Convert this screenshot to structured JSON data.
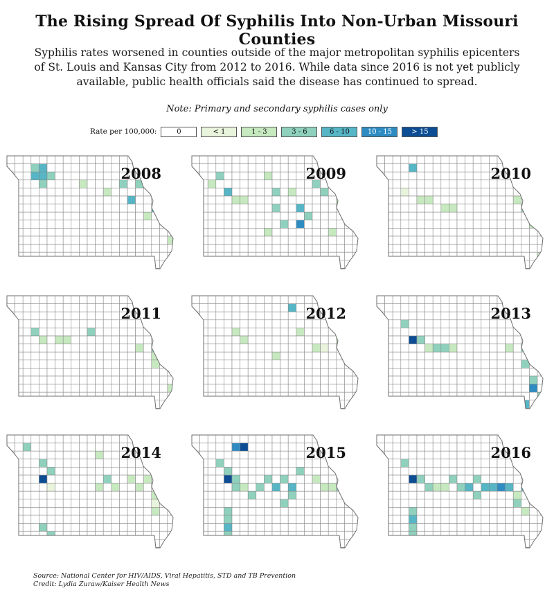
{
  "title": "The Rising Spread Of Syphilis Into Non-Urban Missouri Counties",
  "subtitle": "Syphilis rates worsened in counties outside of the major metropolitan syphilis epicenters of St. Louis and Kansas City from 2012 to 2016. While data since 2016 is not yet publicly available, public health officials said the disease has continued to spread.",
  "note": "Note: Primary and secondary syphilis cases only",
  "legend": {
    "label": "Rate per 100,000:",
    "items": [
      {
        "label": "0",
        "color": "#ffffff",
        "text_color": "#111111"
      },
      {
        "label": "< 1",
        "color": "#e9f4dc",
        "text_color": "#111111"
      },
      {
        "label": "1 - 3",
        "color": "#c7e9c0",
        "text_color": "#111111"
      },
      {
        "label": "3 - 6",
        "color": "#8fd1bd",
        "text_color": "#111111"
      },
      {
        "label": "6 - 10",
        "color": "#56b6c6",
        "text_color": "#111111"
      },
      {
        "label": "10 - 15",
        "color": "#2f8cc2",
        "text_color": "#ffffff"
      },
      {
        "label": "> 15",
        "color": "#0d4d94",
        "text_color": "#ffffff"
      }
    ]
  },
  "maps": [
    {
      "year": "2008",
      "counties": [
        [
          3,
          1,
          3
        ],
        [
          4,
          1,
          4
        ],
        [
          3,
          2,
          4
        ],
        [
          4,
          2,
          4
        ],
        [
          4,
          3,
          3
        ],
        [
          5,
          2,
          3
        ],
        [
          9,
          3,
          2
        ],
        [
          12,
          4,
          2
        ],
        [
          14,
          3,
          3
        ],
        [
          16,
          3,
          3
        ],
        [
          15,
          5,
          4
        ],
        [
          19,
          6,
          2
        ],
        [
          17,
          7,
          2
        ],
        [
          18,
          6,
          4
        ],
        [
          19,
          6,
          6
        ],
        [
          20,
          6,
          5
        ],
        [
          20,
          10,
          2
        ],
        [
          2,
          13,
          1
        ],
        [
          5,
          13,
          3
        ],
        [
          6,
          13,
          4
        ],
        [
          8,
          13,
          2
        ],
        [
          6,
          15,
          3
        ],
        [
          17,
          14,
          2
        ],
        [
          18,
          15,
          3
        ]
      ]
    },
    {
      "year": "2009",
      "counties": [
        [
          2,
          3,
          2
        ],
        [
          3,
          2,
          3
        ],
        [
          4,
          4,
          4
        ],
        [
          5,
          5,
          2
        ],
        [
          6,
          5,
          2
        ],
        [
          9,
          2,
          2
        ],
        [
          10,
          4,
          3
        ],
        [
          12,
          4,
          2
        ],
        [
          13,
          6,
          4
        ],
        [
          14,
          7,
          3
        ],
        [
          13,
          8,
          5
        ],
        [
          10,
          6,
          3
        ],
        [
          11,
          8,
          3
        ],
        [
          9,
          9,
          2
        ],
        [
          15,
          3,
          3
        ],
        [
          16,
          4,
          3
        ],
        [
          18,
          5,
          2
        ],
        [
          19,
          6,
          4
        ],
        [
          20,
          6,
          6
        ],
        [
          17,
          9,
          2
        ],
        [
          2,
          13,
          3
        ],
        [
          5,
          14,
          4
        ],
        [
          6,
          14,
          2
        ],
        [
          7,
          13,
          3
        ],
        [
          9,
          15,
          2
        ],
        [
          10,
          15,
          2
        ]
      ]
    },
    {
      "year": "2010",
      "counties": [
        [
          4,
          1,
          4
        ],
        [
          3,
          4,
          1
        ],
        [
          5,
          5,
          2
        ],
        [
          6,
          5,
          2
        ],
        [
          8,
          6,
          2
        ],
        [
          9,
          6,
          2
        ],
        [
          17,
          5,
          2
        ],
        [
          18,
          6,
          3
        ],
        [
          19,
          6,
          6
        ],
        [
          19,
          8,
          2
        ],
        [
          7,
          13,
          2
        ],
        [
          8,
          14,
          2
        ],
        [
          10,
          14,
          4
        ],
        [
          20,
          12,
          2
        ]
      ]
    },
    {
      "year": "2011",
      "counties": [
        [
          3,
          4,
          3
        ],
        [
          4,
          5,
          2
        ],
        [
          6,
          5,
          2
        ],
        [
          7,
          5,
          2
        ],
        [
          10,
          4,
          3
        ],
        [
          16,
          6,
          2
        ],
        [
          18,
          6,
          3
        ],
        [
          19,
          6,
          6
        ],
        [
          18,
          7,
          2
        ],
        [
          18,
          8,
          2
        ],
        [
          7,
          13,
          1
        ],
        [
          20,
          11,
          2
        ]
      ]
    },
    {
      "year": "2012",
      "counties": [
        [
          5,
          4,
          2
        ],
        [
          6,
          5,
          2
        ],
        [
          12,
          1,
          4
        ],
        [
          13,
          4,
          2
        ],
        [
          10,
          7,
          2
        ],
        [
          15,
          6,
          2
        ],
        [
          16,
          6,
          1
        ],
        [
          18,
          5,
          2
        ],
        [
          19,
          6,
          5
        ],
        [
          2,
          13,
          2
        ],
        [
          4,
          13,
          2
        ],
        [
          9,
          15,
          5
        ],
        [
          10,
          15,
          2
        ],
        [
          17,
          14,
          3
        ],
        [
          18,
          15,
          4
        ]
      ]
    },
    {
      "year": "2013",
      "counties": [
        [
          3,
          3,
          3
        ],
        [
          4,
          5,
          6
        ],
        [
          5,
          5,
          3
        ],
        [
          6,
          6,
          2
        ],
        [
          7,
          6,
          3
        ],
        [
          8,
          6,
          3
        ],
        [
          9,
          6,
          2
        ],
        [
          16,
          6,
          2
        ],
        [
          18,
          6,
          3
        ],
        [
          19,
          6,
          6
        ],
        [
          18,
          8,
          3
        ],
        [
          19,
          10,
          3
        ],
        [
          19,
          11,
          5
        ],
        [
          20,
          12,
          3
        ],
        [
          18,
          13,
          4
        ],
        [
          19,
          14,
          5
        ],
        [
          17,
          15,
          3
        ],
        [
          2,
          13,
          2
        ],
        [
          6,
          13,
          1
        ]
      ]
    },
    {
      "year": "2014",
      "counties": [
        [
          2,
          1,
          3
        ],
        [
          4,
          3,
          3
        ],
        [
          5,
          4,
          3
        ],
        [
          4,
          5,
          6
        ],
        [
          5,
          6,
          1
        ],
        [
          11,
          2,
          2
        ],
        [
          11,
          6,
          2
        ],
        [
          12,
          5,
          3
        ],
        [
          13,
          6,
          2
        ],
        [
          15,
          5,
          2
        ],
        [
          16,
          6,
          2
        ],
        [
          17,
          5,
          2
        ],
        [
          19,
          6,
          6
        ],
        [
          18,
          7,
          2
        ],
        [
          18,
          8,
          1
        ],
        [
          18,
          9,
          2
        ],
        [
          4,
          11,
          3
        ],
        [
          5,
          12,
          3
        ],
        [
          3,
          14,
          2
        ],
        [
          10,
          15,
          5
        ],
        [
          12,
          15,
          2
        ]
      ]
    },
    {
      "year": "2015",
      "counties": [
        [
          5,
          1,
          5
        ],
        [
          6,
          1,
          6
        ],
        [
          3,
          3,
          3
        ],
        [
          4,
          4,
          3
        ],
        [
          5,
          5,
          3
        ],
        [
          4,
          5,
          6
        ],
        [
          5,
          6,
          3
        ],
        [
          6,
          6,
          2
        ],
        [
          7,
          7,
          3
        ],
        [
          8,
          6,
          3
        ],
        [
          9,
          5,
          3
        ],
        [
          10,
          6,
          4
        ],
        [
          11,
          5,
          3
        ],
        [
          12,
          6,
          4
        ],
        [
          12,
          7,
          3
        ],
        [
          11,
          8,
          3
        ],
        [
          13,
          4,
          3
        ],
        [
          15,
          5,
          2
        ],
        [
          16,
          6,
          2
        ],
        [
          17,
          6,
          2
        ],
        [
          18,
          6,
          3
        ],
        [
          19,
          6,
          6
        ],
        [
          4,
          9,
          3
        ],
        [
          4,
          10,
          3
        ],
        [
          4,
          11,
          4
        ],
        [
          4,
          12,
          3
        ],
        [
          5,
          14,
          2
        ],
        [
          9,
          15,
          5
        ],
        [
          10,
          15,
          5
        ],
        [
          12,
          14,
          2
        ],
        [
          16,
          13,
          3
        ],
        [
          17,
          14,
          3
        ]
      ]
    },
    {
      "year": "2016",
      "counties": [
        [
          3,
          3,
          3
        ],
        [
          4,
          5,
          6
        ],
        [
          5,
          5,
          3
        ],
        [
          6,
          6,
          3
        ],
        [
          7,
          6,
          2
        ],
        [
          8,
          6,
          2
        ],
        [
          9,
          5,
          3
        ],
        [
          10,
          6,
          3
        ],
        [
          11,
          6,
          4
        ],
        [
          12,
          5,
          3
        ],
        [
          12,
          7,
          3
        ],
        [
          13,
          6,
          4
        ],
        [
          14,
          6,
          4
        ],
        [
          15,
          6,
          5
        ],
        [
          16,
          6,
          4
        ],
        [
          18,
          6,
          4
        ],
        [
          19,
          6,
          6
        ],
        [
          17,
          7,
          2
        ],
        [
          17,
          8,
          3
        ],
        [
          18,
          9,
          2
        ],
        [
          4,
          9,
          3
        ],
        [
          4,
          10,
          4
        ],
        [
          4,
          11,
          3
        ],
        [
          4,
          12,
          3
        ],
        [
          4,
          13,
          3
        ],
        [
          3,
          15,
          5
        ],
        [
          5,
          15,
          3
        ],
        [
          7,
          15,
          3
        ],
        [
          9,
          14,
          2
        ],
        [
          11,
          13,
          3
        ],
        [
          14,
          13,
          2
        ],
        [
          17,
          14,
          3
        ],
        [
          18,
          15,
          4
        ]
      ]
    }
  ],
  "source": {
    "line1": "Source: National Center for HIV/AIDS, Viral Hepatitis, STD and TB Prevention",
    "line2": "Credit: Lydia Zuraw/Kaiser Health News"
  }
}
